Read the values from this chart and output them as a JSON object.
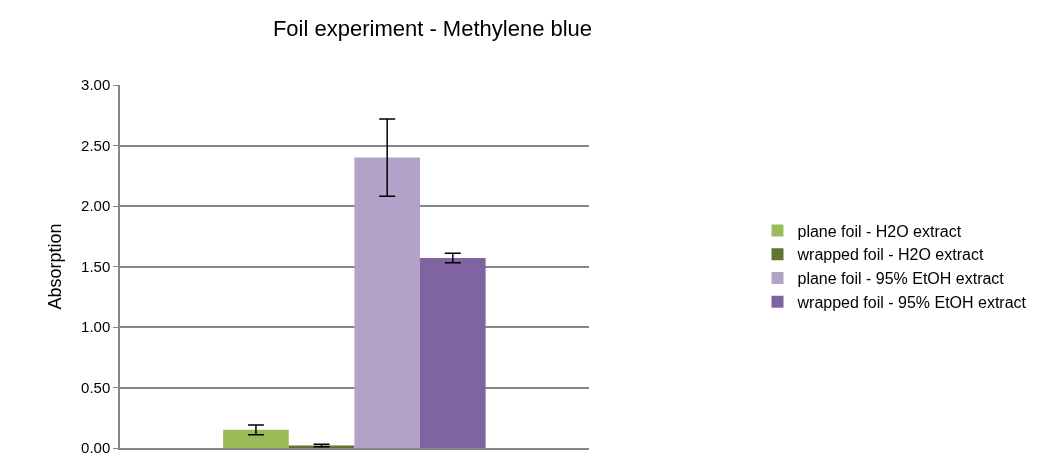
{
  "chart_data": {
    "type": "bar",
    "title": "Foil experiment - Methylene blue",
    "ylabel": "Absorption",
    "categories": [
      null
    ],
    "series": [
      {
        "name": "plane foil - H2O extract",
        "color": "#9bbb59",
        "values": [
          0.15
        ],
        "errors": [
          0.04
        ]
      },
      {
        "name": "wrapped foil - H2O extract",
        "color": "#5f7530",
        "values": [
          0.02
        ],
        "errors": [
          0.01
        ]
      },
      {
        "name": "plane foil - 95% EtOH extract",
        "color": "#b3a2c7",
        "values": [
          2.4
        ],
        "errors": [
          0.32
        ]
      },
      {
        "name": "wrapped foil - 95% EtOH extract",
        "color": "#8064a2",
        "values": [
          1.57
        ],
        "errors": [
          0.04
        ]
      }
    ],
    "ylim": [
      0,
      3
    ],
    "yticks": [
      {
        "value": 0,
        "label": "0.00"
      },
      {
        "value": 0.5,
        "label": "0.50"
      },
      {
        "value": 1,
        "label": "1.00"
      },
      {
        "value": 1.5,
        "label": "1.50"
      },
      {
        "value": 2,
        "label": "2.00"
      },
      {
        "value": 2.5,
        "label": "2.50"
      },
      {
        "value": 3,
        "label": "3.00"
      }
    ],
    "grid": "y",
    "legend": "right"
  }
}
